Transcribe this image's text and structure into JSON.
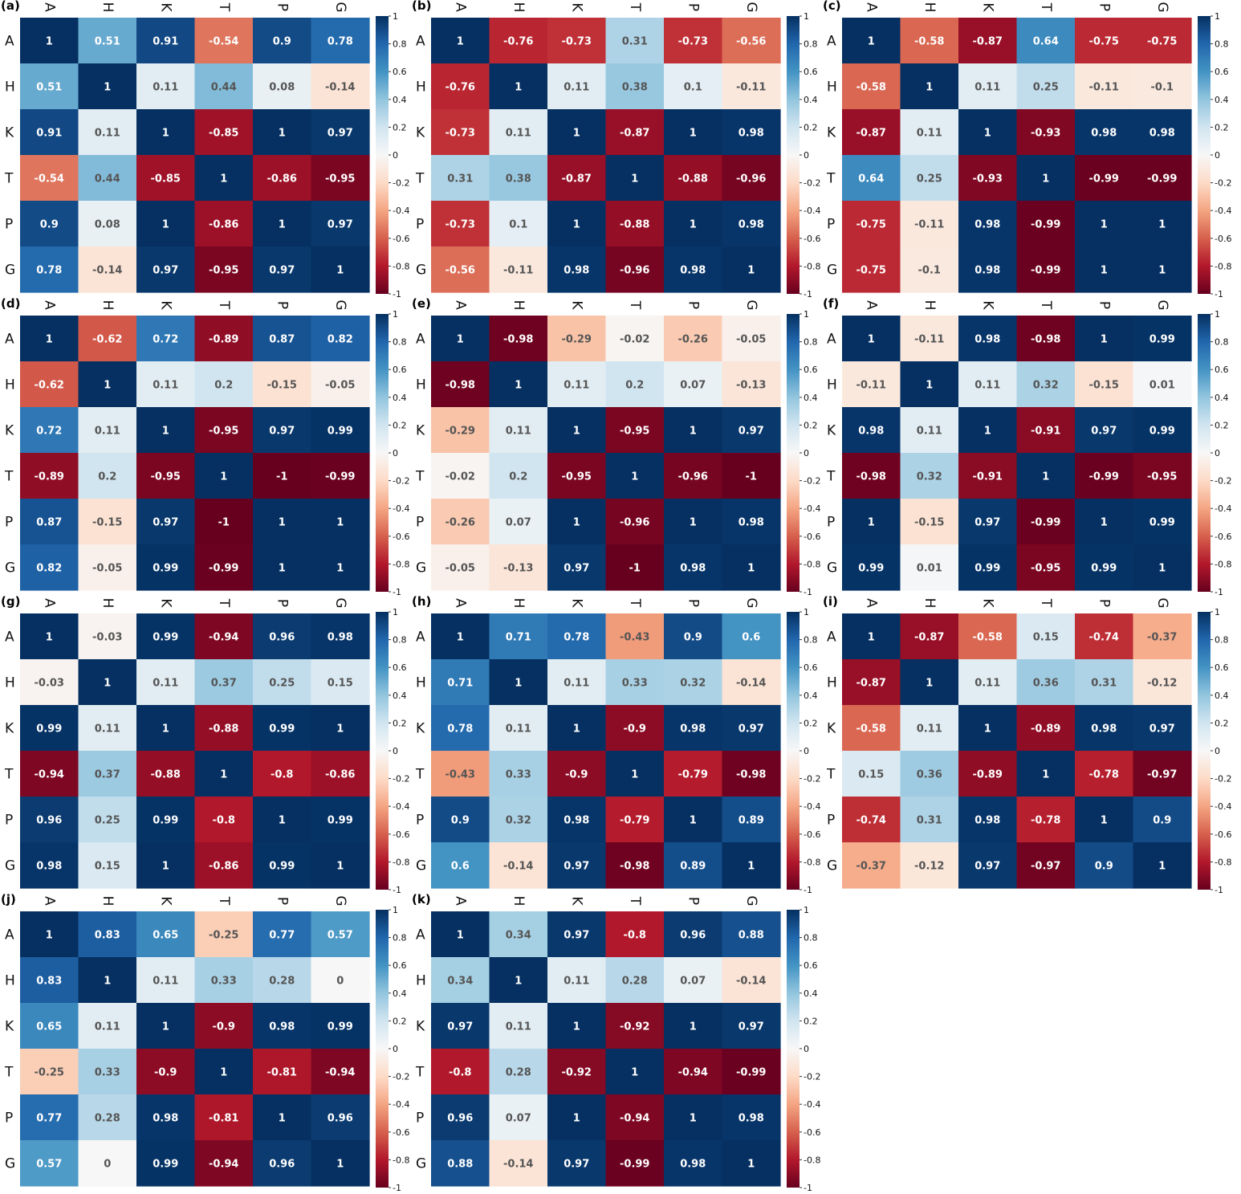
{
  "figure": {
    "colormap": {
      "name": "RdBu",
      "low": "#67001f",
      "mid": "#f7f7f7",
      "high": "#053061"
    },
    "label_colors": {
      "dark": "#ffffff",
      "light": "#555555"
    }
  },
  "chart_data": [
    {
      "type": "heatmap",
      "panel": "(a)",
      "labels": [
        "A",
        "H",
        "K",
        "T",
        "P",
        "G"
      ],
      "colorbar_ticks": [
        "1",
        "0.8",
        "0.6",
        "0.4",
        "0.2",
        "0",
        "-0.2",
        "-0.4",
        "-0.6",
        "-0.8",
        "-1"
      ],
      "vmin": -1,
      "vmax": 1,
      "matrix": [
        [
          1,
          0.51,
          0.91,
          -0.54,
          0.9,
          0.78
        ],
        [
          0.51,
          1,
          0.11,
          0.44,
          0.08,
          -0.14
        ],
        [
          0.91,
          0.11,
          1,
          -0.85,
          1,
          0.97
        ],
        [
          -0.54,
          0.44,
          -0.85,
          1,
          -0.86,
          -0.95
        ],
        [
          0.9,
          0.08,
          1,
          -0.86,
          1,
          0.97
        ],
        [
          0.78,
          -0.14,
          0.97,
          -0.95,
          0.97,
          1
        ]
      ]
    },
    {
      "type": "heatmap",
      "panel": "(b)",
      "labels": [
        "A",
        "H",
        "K",
        "T",
        "P",
        "G"
      ],
      "colorbar_ticks": [
        "1",
        "0.8",
        "0.6",
        "0.4",
        "0.2",
        "0",
        "-0.2",
        "-0.4",
        "-0.6",
        "-0.8",
        "-1"
      ],
      "vmin": -1,
      "vmax": 1,
      "matrix": [
        [
          1,
          -0.76,
          -0.73,
          0.31,
          -0.73,
          -0.56
        ],
        [
          -0.76,
          1,
          0.11,
          0.38,
          0.1,
          -0.11
        ],
        [
          -0.73,
          0.11,
          1,
          -0.87,
          1,
          0.98
        ],
        [
          0.31,
          0.38,
          -0.87,
          1,
          -0.88,
          -0.96
        ],
        [
          -0.73,
          0.1,
          1,
          -0.88,
          1,
          0.98
        ],
        [
          -0.56,
          -0.11,
          0.98,
          -0.96,
          0.98,
          1
        ]
      ]
    },
    {
      "type": "heatmap",
      "panel": "(c)",
      "labels": [
        "A",
        "H",
        "K",
        "T",
        "P",
        "G"
      ],
      "colorbar_ticks": [
        "1",
        "0.8",
        "0.6",
        "0.4",
        "0.2",
        "0",
        "-0.2",
        "-0.4",
        "-0.6",
        "-0.8",
        "-1"
      ],
      "vmin": -1,
      "vmax": 1,
      "matrix": [
        [
          1,
          -0.58,
          -0.87,
          0.64,
          -0.75,
          -0.75
        ],
        [
          -0.58,
          1,
          0.11,
          0.25,
          -0.11,
          -0.1
        ],
        [
          -0.87,
          0.11,
          1,
          -0.93,
          0.98,
          0.98
        ],
        [
          0.64,
          0.25,
          -0.93,
          1,
          -0.99,
          -0.99
        ],
        [
          -0.75,
          -0.11,
          0.98,
          -0.99,
          1,
          1
        ],
        [
          -0.75,
          -0.1,
          0.98,
          -0.99,
          1,
          1
        ]
      ]
    },
    {
      "type": "heatmap",
      "panel": "(d)",
      "labels": [
        "A",
        "H",
        "K",
        "T",
        "P",
        "G"
      ],
      "colorbar_ticks": [
        "1",
        "0.8",
        "0.6",
        "0.4",
        "0.2",
        "0",
        "-0.2",
        "-0.4",
        "-0.6",
        "-0.8",
        "-1"
      ],
      "vmin": -1,
      "vmax": 1,
      "matrix": [
        [
          1,
          -0.62,
          0.72,
          -0.89,
          0.87,
          0.82
        ],
        [
          -0.62,
          1,
          0.11,
          0.2,
          -0.15,
          -0.05
        ],
        [
          0.72,
          0.11,
          1,
          -0.95,
          0.97,
          0.99
        ],
        [
          -0.89,
          0.2,
          -0.95,
          1,
          -1,
          -0.99
        ],
        [
          0.87,
          -0.15,
          0.97,
          -1,
          1,
          1
        ],
        [
          0.82,
          -0.05,
          0.99,
          -0.99,
          1,
          1
        ]
      ]
    },
    {
      "type": "heatmap",
      "panel": "(e)",
      "labels": [
        "A",
        "H",
        "K",
        "T",
        "P",
        "G"
      ],
      "colorbar_ticks": [
        "1",
        "0.8",
        "0.6",
        "0.4",
        "0.2",
        "0",
        "-0.2",
        "-0.4",
        "-0.6",
        "-0.8",
        "-1"
      ],
      "vmin": -1,
      "vmax": 1,
      "matrix": [
        [
          1,
          -0.98,
          -0.29,
          -0.02,
          -0.26,
          -0.05
        ],
        [
          -0.98,
          1,
          0.11,
          0.2,
          0.07,
          -0.13
        ],
        [
          -0.29,
          0.11,
          1,
          -0.95,
          1,
          0.97
        ],
        [
          -0.02,
          0.2,
          -0.95,
          1,
          -0.96,
          -1
        ],
        [
          -0.26,
          0.07,
          1,
          -0.96,
          1,
          0.98
        ],
        [
          -0.05,
          -0.13,
          0.97,
          -1,
          0.98,
          1
        ]
      ]
    },
    {
      "type": "heatmap",
      "panel": "(f)",
      "labels": [
        "A",
        "H",
        "K",
        "T",
        "P",
        "G"
      ],
      "colorbar_ticks": [
        "1",
        "0.8",
        "0.6",
        "0.4",
        "0.2",
        "0",
        "-0.2",
        "-0.4",
        "-0.6",
        "-0.8",
        "-1"
      ],
      "vmin": -1,
      "vmax": 1,
      "matrix": [
        [
          1,
          -0.11,
          0.98,
          -0.98,
          1,
          0.99
        ],
        [
          -0.11,
          1,
          0.11,
          0.32,
          -0.15,
          0.01
        ],
        [
          0.98,
          0.11,
          1,
          -0.91,
          0.97,
          0.99
        ],
        [
          -0.98,
          0.32,
          -0.91,
          1,
          -0.99,
          -0.95
        ],
        [
          1,
          -0.15,
          0.97,
          -0.99,
          1,
          0.99
        ],
        [
          0.99,
          0.01,
          0.99,
          -0.95,
          0.99,
          1
        ]
      ]
    },
    {
      "type": "heatmap",
      "panel": "(g)",
      "labels": [
        "A",
        "H",
        "K",
        "T",
        "P",
        "G"
      ],
      "colorbar_ticks": [
        "1",
        "0.8",
        "0.6",
        "0.4",
        "0.2",
        "0",
        "-0.2",
        "-0.4",
        "-0.6",
        "-0.8",
        "-1"
      ],
      "vmin": -1,
      "vmax": 1,
      "matrix": [
        [
          1,
          -0.03,
          0.99,
          -0.94,
          0.96,
          0.98
        ],
        [
          -0.03,
          1,
          0.11,
          0.37,
          0.25,
          0.15
        ],
        [
          0.99,
          0.11,
          1,
          -0.88,
          0.99,
          1
        ],
        [
          -0.94,
          0.37,
          -0.88,
          1,
          -0.8,
          -0.86
        ],
        [
          0.96,
          0.25,
          0.99,
          -0.8,
          1,
          0.99
        ],
        [
          0.98,
          0.15,
          1,
          -0.86,
          0.99,
          1
        ]
      ]
    },
    {
      "type": "heatmap",
      "panel": "(h)",
      "labels": [
        "A",
        "H",
        "K",
        "T",
        "P",
        "G"
      ],
      "colorbar_ticks": [
        "1",
        "0.8",
        "0.6",
        "0.4",
        "0.2",
        "0",
        "-0.2",
        "-0.4",
        "-0.6",
        "-0.8",
        "-1"
      ],
      "vmin": -1,
      "vmax": 1,
      "matrix": [
        [
          1,
          0.71,
          0.78,
          -0.43,
          0.9,
          0.6
        ],
        [
          0.71,
          1,
          0.11,
          0.33,
          0.32,
          -0.14
        ],
        [
          0.78,
          0.11,
          1,
          -0.9,
          0.98,
          0.97
        ],
        [
          -0.43,
          0.33,
          -0.9,
          1,
          -0.79,
          -0.98
        ],
        [
          0.9,
          0.32,
          0.98,
          -0.79,
          1,
          0.89
        ],
        [
          0.6,
          -0.14,
          0.97,
          -0.98,
          0.89,
          1
        ]
      ]
    },
    {
      "type": "heatmap",
      "panel": "(i)",
      "labels": [
        "A",
        "H",
        "K",
        "T",
        "P",
        "G"
      ],
      "colorbar_ticks": [
        "1",
        "0.8",
        "0.6",
        "0.4",
        "0.2",
        "0",
        "-0.2",
        "-0.4",
        "-0.6",
        "-0.8",
        "-1"
      ],
      "vmin": -1,
      "vmax": 1,
      "matrix": [
        [
          1,
          -0.87,
          -0.58,
          0.15,
          -0.74,
          -0.37
        ],
        [
          -0.87,
          1,
          0.11,
          0.36,
          0.31,
          -0.12
        ],
        [
          -0.58,
          0.11,
          1,
          -0.89,
          0.98,
          0.97
        ],
        [
          0.15,
          0.36,
          -0.89,
          1,
          -0.78,
          -0.97
        ],
        [
          -0.74,
          0.31,
          0.98,
          -0.78,
          1,
          0.9
        ],
        [
          -0.37,
          -0.12,
          0.97,
          -0.97,
          0.9,
          1
        ]
      ]
    },
    {
      "type": "heatmap",
      "panel": "(j)",
      "labels": [
        "A",
        "H",
        "K",
        "T",
        "P",
        "G"
      ],
      "colorbar_ticks": [
        "1",
        "0.8",
        "0.6",
        "0.4",
        "0.2",
        "0",
        "-0.2",
        "-0.4",
        "-0.6",
        "-0.8",
        "-1"
      ],
      "vmin": -1,
      "vmax": 1,
      "matrix": [
        [
          1,
          0.83,
          0.65,
          -0.25,
          0.77,
          0.57
        ],
        [
          0.83,
          1,
          0.11,
          0.33,
          0.28,
          0
        ],
        [
          0.65,
          0.11,
          1,
          -0.9,
          0.98,
          0.99
        ],
        [
          -0.25,
          0.33,
          -0.9,
          1,
          -0.81,
          -0.94
        ],
        [
          0.77,
          0.28,
          0.98,
          -0.81,
          1,
          0.96
        ],
        [
          0.57,
          0,
          0.99,
          -0.94,
          0.96,
          1
        ]
      ]
    },
    {
      "type": "heatmap",
      "panel": "(k)",
      "labels": [
        "A",
        "H",
        "K",
        "T",
        "P",
        "G"
      ],
      "colorbar_ticks": [
        "1",
        "0.8",
        "0.6",
        "0.4",
        "0.2",
        "0",
        "-0.2",
        "-0.4",
        "-0.6",
        "-0.8",
        "-1"
      ],
      "vmin": -1,
      "vmax": 1,
      "matrix": [
        [
          1,
          0.34,
          0.97,
          -0.8,
          0.96,
          0.88
        ],
        [
          0.34,
          1,
          0.11,
          0.28,
          0.07,
          -0.14
        ],
        [
          0.97,
          0.11,
          1,
          -0.92,
          1,
          0.97
        ],
        [
          -0.8,
          0.28,
          -0.92,
          1,
          -0.94,
          -0.99
        ],
        [
          0.96,
          0.07,
          1,
          -0.94,
          1,
          0.98
        ],
        [
          0.88,
          -0.14,
          0.97,
          -0.99,
          0.98,
          1
        ]
      ]
    }
  ]
}
